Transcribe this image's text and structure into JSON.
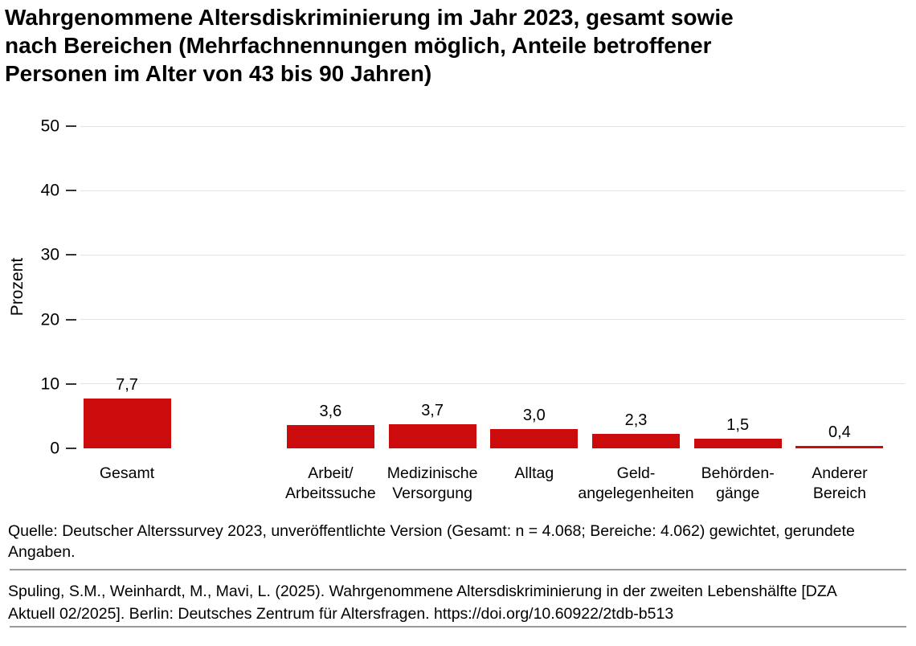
{
  "title": "Wahrgenommene Altersdiskriminierung im Jahr 2023, gesamt sowie\nnach Bereichen (Mehrfachnennungen möglich, Anteile betroffener\nPersonen im Alter von 43 bis 90 Jahren)",
  "chart_data": {
    "type": "bar",
    "categories": [
      "Gesamt",
      "Arbeit/\nArbeitssuche",
      "Medizinische\nVersorgung",
      "Alltag",
      "Geld-\nangelegenheiten",
      "Behörden-\ngänge",
      "Anderer\nBereich"
    ],
    "values": [
      7.7,
      3.6,
      3.7,
      3.0,
      2.3,
      1.5,
      0.4
    ],
    "value_labels": [
      "7,7",
      "3,6",
      "3,7",
      "3,0",
      "2,3",
      "1,5",
      "0,4"
    ],
    "title": "Wahrgenommene Altersdiskriminierung im Jahr 2023, gesamt sowie nach Bereichen",
    "xlabel": "",
    "ylabel": "Prozent",
    "ylim": [
      0,
      50
    ],
    "yticks": [
      0,
      10,
      20,
      30,
      40,
      50
    ],
    "grid": "horizontal gridlines at ticks above 0",
    "legend": "none",
    "bar_color": "#cc0c0c",
    "gap_after_category": "Gesamt"
  },
  "source_note": "Quelle: Deutscher Alterssurvey 2023, unveröffentlichte Version (Gesamt: n = 4.068; Bereiche: 4.062) gewichtet, gerundete\nAngaben.",
  "citation": "Spuling, S.M., Weinhardt, M., Mavi, L. (2025). Wahrgenommene Altersdiskriminierung in der zweiten Lebenshälfte [DZA\nAktuell 02/2025]. Berlin: Deutsches Zentrum für Altersfragen. https://doi.org/10.60922/2tdb-b513"
}
